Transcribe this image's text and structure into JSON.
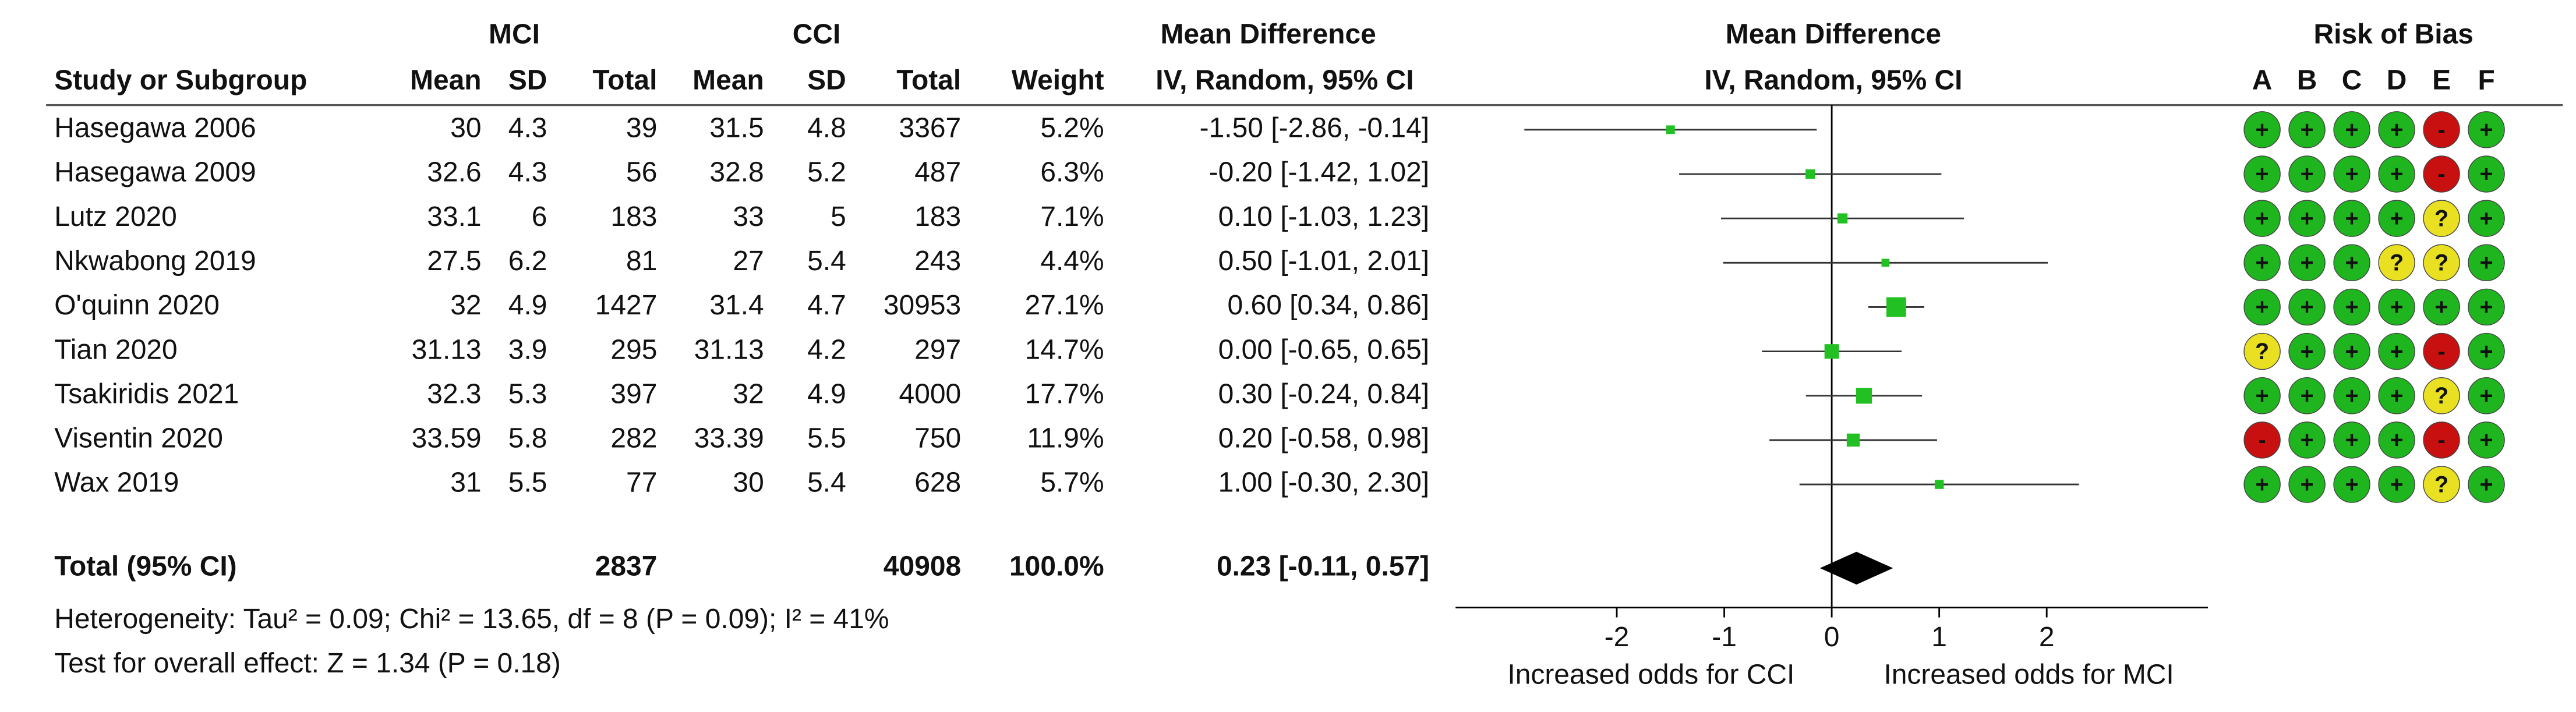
{
  "chart_data": {
    "type": "forest",
    "columns": {
      "study": "Study or Subgroup",
      "mci": "MCI",
      "cci": "CCI",
      "mean": "Mean",
      "sd": "SD",
      "total": "Total",
      "weight": "Weight",
      "md_title": "Mean Difference",
      "md_method": "IV, Random, 95% CI",
      "bias_title": "Risk of Bias",
      "bias_domains": [
        "A",
        "B",
        "C",
        "D",
        "E",
        "F"
      ]
    },
    "studies": [
      {
        "name": "Hasegawa 2006",
        "mci_mean": 30,
        "mci_sd": 4.3,
        "mci_total": 39,
        "cci_mean": 31.5,
        "cci_sd": 4.8,
        "cci_total": 3367,
        "weight": 5.2,
        "weight_label": "5.2%",
        "md": -1.5,
        "lo": -2.86,
        "hi": -0.14,
        "ci_label": "-1.50 [-2.86, -0.14]",
        "bias": [
          "+",
          "+",
          "+",
          "+",
          "-",
          "+"
        ]
      },
      {
        "name": "Hasegawa 2009",
        "mci_mean": 32.6,
        "mci_sd": 4.3,
        "mci_total": 56,
        "cci_mean": 32.8,
        "cci_sd": 5.2,
        "cci_total": 487,
        "weight": 6.3,
        "weight_label": "6.3%",
        "md": -0.2,
        "lo": -1.42,
        "hi": 1.02,
        "ci_label": "-0.20 [-1.42, 1.02]",
        "bias": [
          "+",
          "+",
          "+",
          "+",
          "-",
          "+"
        ]
      },
      {
        "name": "Lutz 2020",
        "mci_mean": 33.1,
        "mci_sd": 6,
        "mci_total": 183,
        "cci_mean": 33,
        "cci_sd": 5,
        "cci_total": 183,
        "weight": 7.1,
        "weight_label": "7.1%",
        "md": 0.1,
        "lo": -1.03,
        "hi": 1.23,
        "ci_label": "0.10 [-1.03, 1.23]",
        "bias": [
          "+",
          "+",
          "+",
          "+",
          "?",
          "+"
        ]
      },
      {
        "name": "Nkwabong 2019",
        "mci_mean": 27.5,
        "mci_sd": 6.2,
        "mci_total": 81,
        "cci_mean": 27,
        "cci_sd": 5.4,
        "cci_total": 243,
        "weight": 4.4,
        "weight_label": "4.4%",
        "md": 0.5,
        "lo": -1.01,
        "hi": 2.01,
        "ci_label": "0.50 [-1.01, 2.01]",
        "bias": [
          "+",
          "+",
          "+",
          "?",
          "?",
          "+"
        ]
      },
      {
        "name": "O'quinn 2020",
        "mci_mean": 32,
        "mci_sd": 4.9,
        "mci_total": 1427,
        "cci_mean": 31.4,
        "cci_sd": 4.7,
        "cci_total": 30953,
        "weight": 27.1,
        "weight_label": "27.1%",
        "md": 0.6,
        "lo": 0.34,
        "hi": 0.86,
        "ci_label": "0.60 [0.34, 0.86]",
        "bias": [
          "+",
          "+",
          "+",
          "+",
          "+",
          "+"
        ]
      },
      {
        "name": "Tian 2020",
        "mci_mean": 31.13,
        "mci_sd": 3.9,
        "mci_total": 295,
        "cci_mean": 31.13,
        "cci_sd": 4.2,
        "cci_total": 297,
        "weight": 14.7,
        "weight_label": "14.7%",
        "md": 0,
        "lo": -0.65,
        "hi": 0.65,
        "ci_label": "0.00 [-0.65, 0.65]",
        "bias": [
          "?",
          "+",
          "+",
          "+",
          "-",
          "+"
        ]
      },
      {
        "name": "Tsakiridis 2021",
        "mci_mean": 32.3,
        "mci_sd": 5.3,
        "mci_total": 397,
        "cci_mean": 32,
        "cci_sd": 4.9,
        "cci_total": 4000,
        "weight": 17.7,
        "weight_label": "17.7%",
        "md": 0.3,
        "lo": -0.24,
        "hi": 0.84,
        "ci_label": "0.30 [-0.24, 0.84]",
        "bias": [
          "+",
          "+",
          "+",
          "+",
          "?",
          "+"
        ]
      },
      {
        "name": "Visentin 2020",
        "mci_mean": 33.59,
        "mci_sd": 5.8,
        "mci_total": 282,
        "cci_mean": 33.39,
        "cci_sd": 5.5,
        "cci_total": 750,
        "weight": 11.9,
        "weight_label": "11.9%",
        "md": 0.2,
        "lo": -0.58,
        "hi": 0.98,
        "ci_label": "0.20 [-0.58, 0.98]",
        "bias": [
          "-",
          "+",
          "+",
          "+",
          "-",
          "+"
        ]
      },
      {
        "name": "Wax 2019",
        "mci_mean": 31,
        "mci_sd": 5.5,
        "mci_total": 77,
        "cci_mean": 30,
        "cci_sd": 5.4,
        "cci_total": 628,
        "weight": 5.7,
        "weight_label": "5.7%",
        "md": 1,
        "lo": -0.3,
        "hi": 2.3,
        "ci_label": "1.00 [-0.30, 2.30]",
        "bias": [
          "+",
          "+",
          "+",
          "+",
          "?",
          "+"
        ]
      }
    ],
    "total": {
      "name": "Total (95% CI)",
      "mci_total": 2837,
      "cci_total": 40908,
      "weight_label": "100.0%",
      "md": 0.23,
      "lo": -0.11,
      "hi": 0.57,
      "ci_label": "0.23 [-0.11, 0.57]"
    },
    "heterogeneity": "Heterogeneity: Tau² = 0.09; Chi² = 13.65, df = 8 (P = 0.09); I² = 41%",
    "overall_effect": "Test for overall effect: Z = 1.34 (P = 0.18)",
    "xlim": [
      -3.5,
      3.5
    ],
    "xticks": [
      -2,
      -1,
      0,
      1,
      2
    ],
    "xlabel_left": "Increased odds for CCI",
    "xlabel_right": "Increased odds for MCI",
    "marker_color": "#22c022",
    "diamond_color": "#000000",
    "bias_colors": {
      "+": "#1fb51f",
      "-": "#c81010",
      "?": "#e8e020"
    }
  }
}
